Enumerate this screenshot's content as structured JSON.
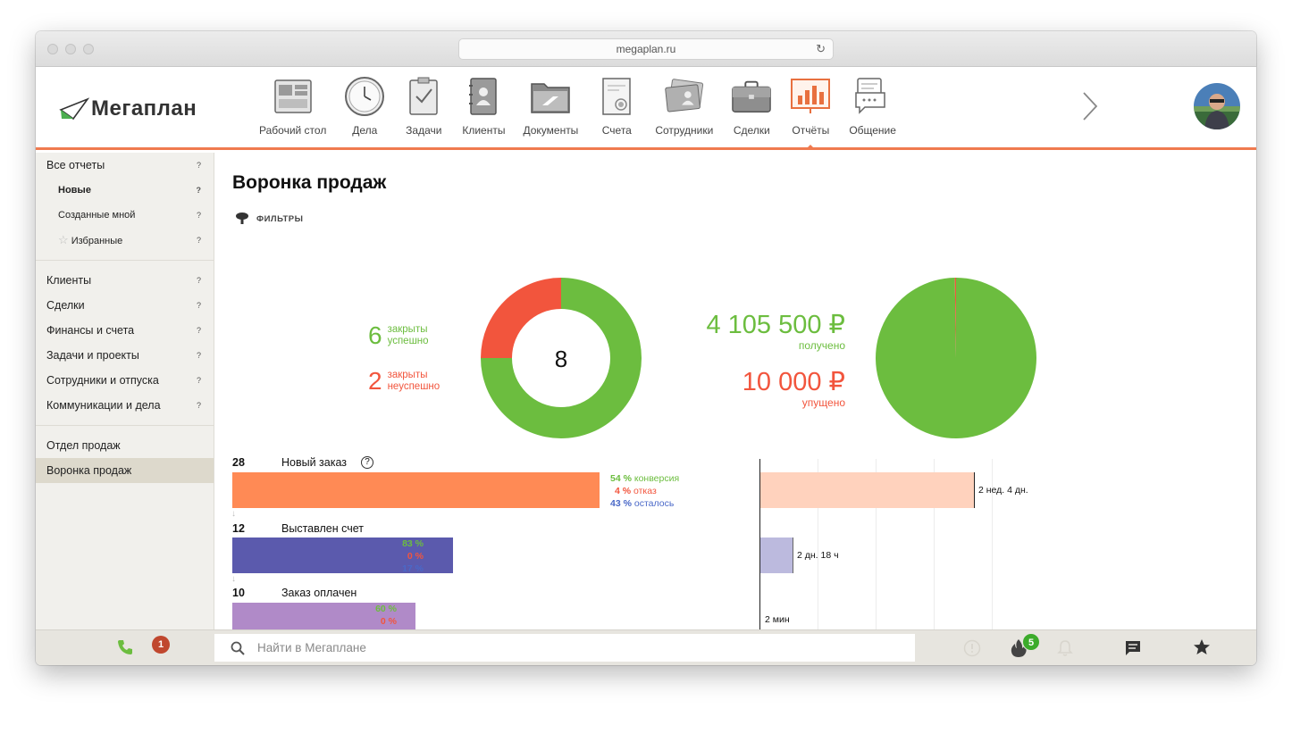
{
  "browser": {
    "url": "megaplan.ru"
  },
  "logo": {
    "text": "Мегаплан"
  },
  "nav": {
    "items": [
      {
        "label": "Рабочий стол",
        "icon": "desktop-icon"
      },
      {
        "label": "Дела",
        "icon": "clock-icon"
      },
      {
        "label": "Задачи",
        "icon": "clipboard-check-icon"
      },
      {
        "label": "Клиенты",
        "icon": "address-book-icon"
      },
      {
        "label": "Документы",
        "icon": "folder-icon"
      },
      {
        "label": "Счета",
        "icon": "invoice-icon"
      },
      {
        "label": "Сотрудники",
        "icon": "id-cards-icon"
      },
      {
        "label": "Сделки",
        "icon": "briefcase-icon"
      },
      {
        "label": "Отчёты",
        "icon": "bar-chart-icon",
        "active": true
      },
      {
        "label": "Общение",
        "icon": "chat-icon"
      }
    ]
  },
  "sidebar": {
    "help": "?",
    "all_reports": "Все отчеты",
    "new": "Новые",
    "created_by_me": "Созданные мной",
    "favorites": "Избранные",
    "categories": [
      "Клиенты",
      "Сделки",
      "Финансы и счета",
      "Задачи и проекты",
      "Сотрудники и отпуска",
      "Коммуникации и дела"
    ],
    "custom": [
      "Отдел продаж",
      "Воронка продаж"
    ],
    "selected": "Воронка продаж"
  },
  "page": {
    "title": "Воронка продаж",
    "filters_label": "ФИЛЬТРЫ"
  },
  "summary": {
    "closed_success_count": "6",
    "closed_success_line1": "закрыты",
    "closed_success_line2": "успешно",
    "closed_fail_count": "2",
    "closed_fail_line1": "закрыты",
    "closed_fail_line2": "неуспешно",
    "total": "8",
    "received_amount": "4 105 500 ₽",
    "received_label": "получено",
    "missed_amount": "10 000 ₽",
    "missed_label": "упущено"
  },
  "chart_data": [
    {
      "type": "pie",
      "variant": "donut",
      "categories": [
        "закрыты успешно",
        "закрыты неуспешно"
      ],
      "values": [
        6,
        2
      ],
      "center_label": "8",
      "colors": [
        "#6cbd3f",
        "#f2553d"
      ]
    },
    {
      "type": "pie",
      "categories": [
        "получено",
        "упущено"
      ],
      "values": [
        4105500,
        10000
      ],
      "colors": [
        "#6cbd3f",
        "#f2553d"
      ]
    },
    {
      "type": "bar",
      "orientation": "horizontal",
      "categories": [
        "Новый заказ",
        "Выставлен счет",
        "Заказ оплачен"
      ],
      "values": [
        28,
        12,
        10
      ],
      "colors": [
        "#ff8a55",
        "#5b5aad",
        "#b08ac8"
      ]
    }
  ],
  "funnel": {
    "help_icon": "?",
    "stages": [
      {
        "count": "28",
        "name": "Новый заказ",
        "conversion": "54 %",
        "conversion_label": "конверсия",
        "refusal": "4 %",
        "refusal_label": "отказ",
        "remaining": "43 %",
        "remaining_label": "осталось",
        "duration": "2 нед. 4 дн."
      },
      {
        "count": "12",
        "name": "Выставлен счет",
        "conversion": "83 %",
        "refusal": "0 %",
        "remaining": "17 %",
        "duration": "2 дн. 18 ч"
      },
      {
        "count": "10",
        "name": "Заказ оплачен",
        "conversion": "60 %",
        "refusal": "0 %",
        "duration": "2 мин"
      }
    ]
  },
  "bottombar": {
    "missed_calls": "1",
    "search_placeholder": "Найти в Мегаплане",
    "hot_count": "5"
  },
  "colors": {
    "accent": "#f07a4f",
    "success": "#6cbd3f",
    "danger": "#f2553d",
    "info": "#4a68c8"
  }
}
